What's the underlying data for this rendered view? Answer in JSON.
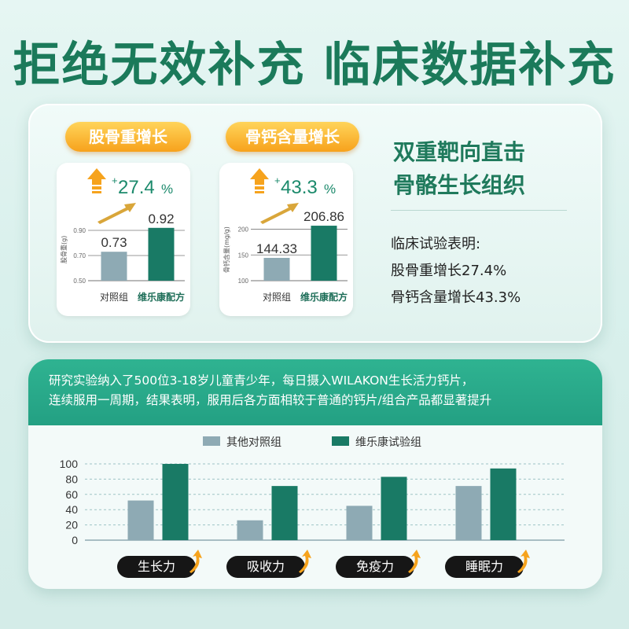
{
  "headline": "拒绝无效补充  临床数据补充",
  "colors": {
    "control": "#8eaab4",
    "test": "#197a65",
    "accent": "#f7a21c",
    "brand_green": "#1b7a5a"
  },
  "card1": {
    "pill": "股骨重增长",
    "growth": "+27.4%",
    "growth_sign": "+",
    "growth_num": "27.4",
    "growth_unit": "%",
    "yaxis_label": "股骨重(g)",
    "ticks": [
      "0.90",
      "0.70",
      "0.50"
    ],
    "control_value_label": "0.73",
    "test_value_label": "0.92",
    "control_label": "对照组",
    "test_label": "维乐康配方"
  },
  "card2": {
    "pill": "骨钙含量增长",
    "growth_sign": "+",
    "growth_num": "43.3",
    "growth_unit": "%",
    "yaxis_label": "骨钙含量(mg/g)",
    "ticks": [
      "200",
      "150",
      "100"
    ],
    "control_value_label": "144.33",
    "test_value_label": "206.86",
    "control_label": "对照组",
    "test_label": "维乐康配方"
  },
  "right": {
    "title1": "双重靶向直击",
    "title2": "骨骼生长组织",
    "intro": "临床试验表明:",
    "line1": "股骨重增长27.4%",
    "line2": "骨钙含量增长43.3%"
  },
  "banner": {
    "line1": "研究实验纳入了500位3-18岁儿童青少年，每日摄入WILAKON生长活力钙片，",
    "line2": "连续服用一周期，结果表明，服用后各方面相较于普通的钙片/组合产品都显著提升"
  },
  "chart_data": [
    {
      "type": "bar",
      "title": "股骨重增长",
      "ylabel": "股骨重(g)",
      "categories": [
        "对照组",
        "维乐康配方"
      ],
      "values": [
        0.73,
        0.92
      ],
      "ylim": [
        0.5,
        0.95
      ],
      "yticks": [
        0.5,
        0.7,
        0.9
      ],
      "grid": true
    },
    {
      "type": "bar",
      "title": "骨钙含量增长",
      "ylabel": "骨钙含量(mg/g)",
      "categories": [
        "对照组",
        "维乐康配方"
      ],
      "values": [
        144.33,
        206.86
      ],
      "ylim": [
        100,
        210
      ],
      "yticks": [
        100,
        150,
        200
      ],
      "grid": true
    },
    {
      "type": "bar",
      "categories": [
        "生长力",
        "吸收力",
        "免疫力",
        "睡眠力"
      ],
      "series": [
        {
          "name": "其他对照组",
          "values": [
            52,
            26,
            45,
            71
          ]
        },
        {
          "name": "维乐康试验组",
          "values": [
            100,
            71,
            83,
            94
          ]
        }
      ],
      "ylim": [
        0,
        100
      ],
      "yticks": [
        0,
        20,
        40,
        60,
        80,
        100
      ],
      "grid": true,
      "legend": "top"
    }
  ]
}
